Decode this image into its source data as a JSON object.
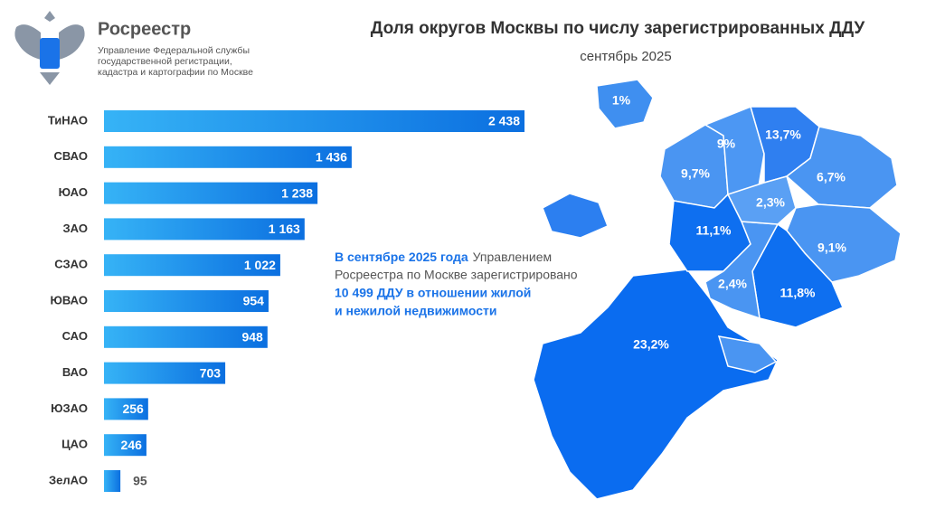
{
  "header": {
    "org": "Росреестр",
    "org_subtitle": [
      "Управление Федеральной службы",
      "государственной регистрации,",
      "кадастра и картографии по Москве"
    ]
  },
  "chart_data": {
    "type": "bar",
    "orientation": "horizontal",
    "title": "Доля округов Москвы по числу зарегистрированных ДДУ",
    "subtitle": "сентябрь 2025",
    "categories": [
      "ТиНАО",
      "СВАО",
      "ЮАО",
      "ЗАО",
      "СЗАО",
      "ЮВАО",
      "САО",
      "ВАО",
      "ЮЗАО",
      "ЦАО",
      "ЗелАО"
    ],
    "values": [
      2438,
      1436,
      1238,
      1163,
      1022,
      954,
      948,
      703,
      256,
      246,
      95
    ],
    "value_labels": [
      "2 438",
      "1 436",
      "1 238",
      "1 163",
      "1 022",
      "954",
      "948",
      "703",
      "256",
      "246",
      "95"
    ],
    "color": "#0b6fe0"
  },
  "annotation": {
    "line1_bold": "В сентябре 2025 года",
    "line1_rest": "Управлением",
    "line2": "Росреестра по Москве зарегистрировано",
    "line3_bold": "10 499 ДДУ в отношении жилой",
    "line4_bold": "и нежилой недвижимости"
  },
  "map": {
    "labels": [
      "1%",
      "9%",
      "13,7%",
      "9,7%",
      "6,7%",
      "2,3%",
      "11,1%",
      "9,1%",
      "2,4%",
      "11,8%",
      "23,2%"
    ]
  }
}
